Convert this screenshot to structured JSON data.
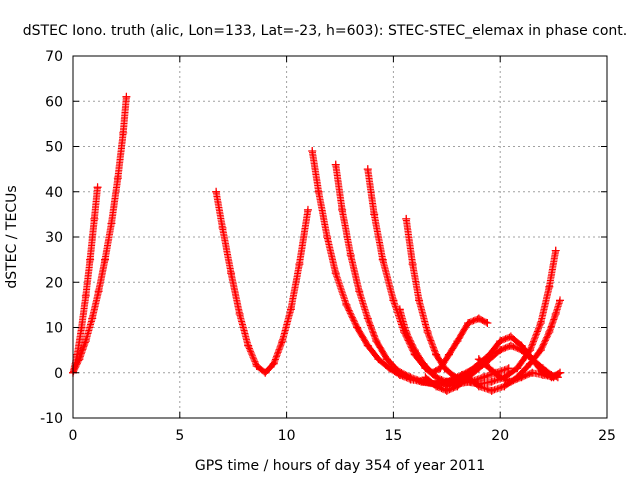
{
  "chart_data": {
    "type": "scatter",
    "title": "dSTEC Iono. truth (alic, Lon=133, Lat=-23, h=603): STEC-STEC_elemax in phase cont.",
    "xlabel": "GPS time / hours of day 354 of year 2011",
    "ylabel": "dSTEC  / TECUs",
    "xlim": [
      0,
      25
    ],
    "ylim": [
      -10,
      70
    ],
    "x_ticks": [
      0,
      5,
      10,
      15,
      20,
      25
    ],
    "y_ticks": [
      -10,
      0,
      10,
      20,
      30,
      40,
      50,
      60,
      70
    ],
    "grid": true,
    "marker": "+",
    "color": "#ff0000",
    "series": [
      {
        "x": [
          0.0,
          0.2,
          0.4,
          0.6,
          0.8,
          1.0,
          1.15
        ],
        "y": [
          0,
          4,
          10,
          17,
          25,
          34,
          41
        ]
      },
      {
        "x": [
          0.0,
          0.3,
          0.6,
          0.9,
          1.2,
          1.5,
          1.8,
          2.1,
          2.35,
          2.5
        ],
        "y": [
          0,
          3,
          7,
          12,
          18,
          25,
          33,
          43,
          53,
          61
        ]
      },
      {
        "x": [
          6.7,
          7.0,
          7.4,
          7.8,
          8.2,
          8.6,
          9.0,
          9.4,
          9.8,
          10.2,
          10.6,
          11.0
        ],
        "y": [
          40,
          32,
          22,
          13,
          6,
          1.5,
          0,
          2,
          7,
          14,
          24,
          36
        ]
      },
      {
        "x": [
          11.2,
          11.5,
          11.9,
          12.3,
          12.8,
          13.3,
          13.8,
          14.3,
          14.8,
          15.3,
          15.8,
          16.3,
          16.9,
          17.5,
          18.0
        ],
        "y": [
          49,
          40,
          30,
          22,
          15,
          10,
          6,
          3,
          1,
          -0.5,
          -1.5,
          -2,
          -2.5,
          -2,
          -1
        ]
      },
      {
        "x": [
          12.3,
          12.6,
          13.0,
          13.4,
          13.8,
          14.2,
          14.7,
          15.2,
          15.8,
          16.4,
          17.0,
          17.6,
          18.2,
          18.8,
          19.3
        ],
        "y": [
          46,
          36,
          26,
          18,
          12,
          7,
          3,
          0.5,
          -1,
          -2,
          -2.5,
          -2,
          -0.5,
          1,
          2
        ]
      },
      {
        "x": [
          13.8,
          14.1,
          14.5,
          15.0,
          15.5,
          16.0,
          16.5,
          17.0,
          17.5,
          18.0,
          18.6,
          19.2,
          19.8,
          20.4
        ],
        "y": [
          45,
          35,
          25,
          16,
          9,
          4,
          1,
          -1,
          -2,
          -2.5,
          -2,
          -1,
          0,
          1
        ]
      },
      {
        "x": [
          15.6,
          15.9,
          16.2,
          16.6,
          17.0,
          17.4,
          17.9,
          18.4,
          19.0,
          19.6,
          20.2,
          20.8,
          21.4,
          21.9,
          22.3,
          22.6
        ],
        "y": [
          34,
          24,
          16,
          9,
          4,
          1,
          -1,
          -2,
          -2.5,
          -2,
          -1,
          1,
          5,
          11,
          19,
          27
        ]
      },
      {
        "x": [
          15.3,
          15.6,
          16.0,
          16.4,
          16.8,
          17.2,
          17.6,
          18.0,
          18.5,
          19.0,
          19.4
        ],
        "y": [
          14,
          9,
          5,
          2,
          0,
          1,
          4,
          7,
          11,
          12,
          11
        ]
      },
      {
        "x": [
          16.5,
          17.0,
          17.5,
          18.0,
          18.5,
          19.0,
          19.5,
          20.0,
          20.5,
          21.0,
          21.5,
          22.0,
          22.4,
          22.7
        ],
        "y": [
          -1,
          -3,
          -4,
          -3,
          -1,
          1,
          3,
          5,
          6,
          5,
          3,
          1,
          -0.5,
          -1
        ]
      },
      {
        "x": [
          17.5,
          18.0,
          18.5,
          19.0,
          19.5,
          20.0,
          20.5,
          21.0,
          21.5,
          22.0,
          22.4,
          22.8
        ],
        "y": [
          -3,
          -2,
          0,
          2,
          4,
          7,
          8,
          6,
          3,
          0,
          -1,
          0
        ]
      },
      {
        "x": [
          18.5,
          19.0,
          19.6,
          20.2,
          20.8,
          21.4,
          21.9,
          22.3,
          22.6,
          22.8
        ],
        "y": [
          -1,
          -3,
          -4,
          -3,
          -1,
          2,
          5,
          9,
          13,
          16
        ]
      },
      {
        "x": [
          19.0,
          19.5,
          20.0,
          20.5,
          21.0,
          21.5,
          22.0,
          22.5,
          22.8
        ],
        "y": [
          3,
          1,
          -1,
          -2,
          -1,
          0,
          -0.5,
          -1,
          0
        ]
      }
    ]
  }
}
